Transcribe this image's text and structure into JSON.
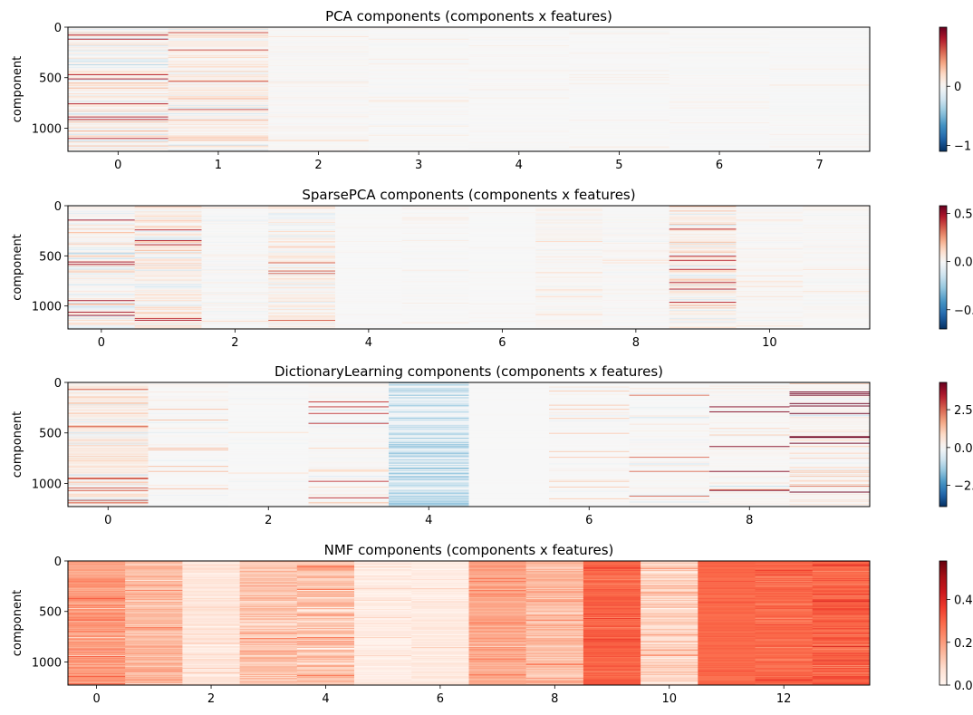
{
  "figure": {
    "background": "#ffffff"
  },
  "chart_data": [
    {
      "type": "heatmap",
      "title": "PCA components (components x features)",
      "xlabel": "",
      "ylabel": "component",
      "n_features": 8,
      "n_rows": 1229,
      "x_ticks": [
        0,
        1,
        2,
        3,
        4,
        5,
        6,
        7
      ],
      "y_ticks": [
        0,
        500,
        1000
      ],
      "x_range": [
        -0.5,
        7.5
      ],
      "y_range": [
        1229,
        0
      ],
      "colormap": "RdBu_r",
      "color_range": [
        -1.1,
        1.0
      ],
      "colorbar_ticks": [
        {
          "value": 0,
          "label": "0"
        },
        {
          "value": -1,
          "label": "−1"
        }
      ],
      "column_spread": [
        0.35,
        0.3,
        0.06,
        0.04,
        0.03,
        0.03,
        0.03,
        0.03
      ],
      "column_bias": [
        0.05,
        0.1,
        0.02,
        0,
        0,
        0,
        0,
        0
      ],
      "seed": 11
    },
    {
      "type": "heatmap",
      "title": "SparsePCA components (components x features)",
      "xlabel": "",
      "ylabel": "component",
      "n_features": 12,
      "n_rows": 1229,
      "x_ticks": [
        0,
        2,
        4,
        6,
        8,
        10
      ],
      "y_ticks": [
        0,
        500,
        1000
      ],
      "x_range": [
        -0.5,
        11.5
      ],
      "y_range": [
        1229,
        0
      ],
      "colormap": "RdBu_r",
      "color_range": [
        -0.7,
        0.58
      ],
      "colorbar_ticks": [
        {
          "value": 0.5,
          "label": "0.5"
        },
        {
          "value": 0.0,
          "label": "0.0"
        },
        {
          "value": -0.5,
          "label": "−0.5"
        }
      ],
      "column_spread": [
        0.22,
        0.2,
        0.05,
        0.16,
        0.01,
        0.02,
        0.01,
        0.05,
        0.04,
        0.2,
        0.04,
        0.04
      ],
      "column_bias": [
        0.02,
        0.05,
        0,
        0.04,
        0,
        0,
        0,
        0.02,
        0.01,
        0.06,
        0.01,
        0.01
      ],
      "seed": 23
    },
    {
      "type": "heatmap",
      "title": "DictionaryLearning components (components x features)",
      "xlabel": "",
      "ylabel": "component",
      "n_features": 10,
      "n_rows": 1229,
      "x_ticks": [
        0,
        2,
        4,
        6,
        8
      ],
      "y_ticks": [
        0,
        500,
        1000
      ],
      "x_range": [
        -0.5,
        9.5
      ],
      "y_range": [
        1229,
        0
      ],
      "colormap": "RdBu_r",
      "color_range": [
        -3.9,
        4.3
      ],
      "colorbar_ticks": [
        {
          "value": 2.5,
          "label": "2.5"
        },
        {
          "value": 0.0,
          "label": "0.0"
        },
        {
          "value": -2.5,
          "label": "−2.5"
        }
      ],
      "column_spread": [
        1.2,
        0.6,
        0.3,
        1.4,
        -1.8,
        0.02,
        0.5,
        1.1,
        1.8,
        1.9
      ],
      "column_bias": [
        0.5,
        0,
        0,
        0.3,
        -0.9,
        0,
        0,
        0.2,
        0.6,
        0.8
      ],
      "seed": 37
    },
    {
      "type": "heatmap",
      "title": "NMF components (components x features)",
      "xlabel": "",
      "ylabel": "component",
      "n_features": 14,
      "n_rows": 1229,
      "x_ticks": [
        0,
        2,
        4,
        6,
        8,
        10,
        12
      ],
      "y_ticks": [
        0,
        500,
        1000
      ],
      "x_range": [
        -0.5,
        13.5
      ],
      "y_range": [
        1229,
        0
      ],
      "colormap": "Reds",
      "color_range": [
        0.0,
        0.58
      ],
      "colorbar_ticks": [
        {
          "value": 0.4,
          "label": "0.4"
        },
        {
          "value": 0.2,
          "label": "0.2"
        },
        {
          "value": 0.0,
          "label": "0.0"
        }
      ],
      "column_mean": [
        0.2,
        0.15,
        0.05,
        0.12,
        0.13,
        0.03,
        0.04,
        0.18,
        0.14,
        0.3,
        0.1,
        0.29,
        0.29,
        0.31
      ],
      "column_spread": [
        0.05,
        0.05,
        0.04,
        0.06,
        0.06,
        0.03,
        0.03,
        0.04,
        0.05,
        0.03,
        0.05,
        0.02,
        0.03,
        0.04
      ],
      "seed": 53
    }
  ]
}
